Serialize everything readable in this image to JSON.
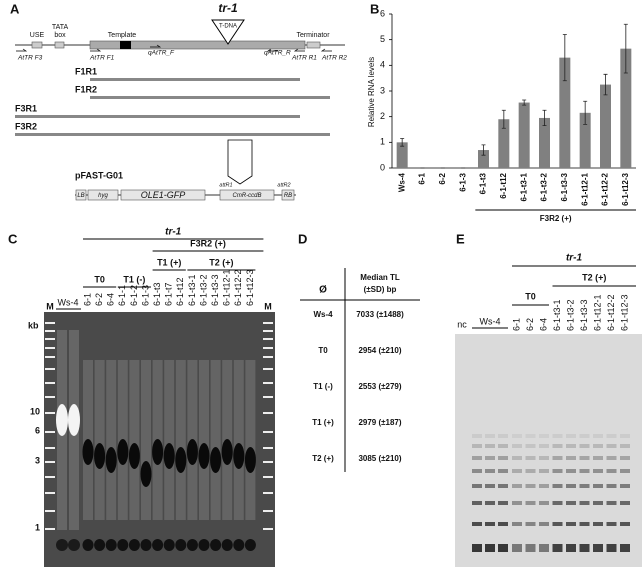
{
  "panel_a": {
    "letter": "A",
    "insertion": {
      "label": "tr-1",
      "sublabel": "T-DNA"
    },
    "use": "USE",
    "tata_box": [
      "TATA",
      "box"
    ],
    "template": "Template",
    "terminator": "Terminator",
    "primers": [
      "AtTR F3",
      "AtTR F1",
      "qAtTR_F",
      "qAtTR_R",
      "AtTR R1",
      "AtTR R2"
    ],
    "amplicons": [
      "F1R1",
      "F1R2",
      "F3R1",
      "F3R2"
    ],
    "construct": {
      "name": "pFAST-G01",
      "parts": [
        "LB",
        "hyg",
        "OLE1-GFP",
        "CmR-ccdB",
        "RB"
      ],
      "sites": [
        "attR1",
        "attR2"
      ],
      "insert": [
        "F1R1",
        "F1R2",
        "F3R1",
        "F3R2"
      ]
    }
  },
  "chart_data": {
    "type": "bar",
    "panel_letter": "B",
    "y_label": "Relative RNA levels",
    "categories": [
      "Ws-4",
      "6-1",
      "6-2",
      "6-1-3",
      "6-1-t3",
      "6-1-t12",
      "6-1-t3-1",
      "6-1-t3-2",
      "6-1-t3-3",
      "6-1-t12-1",
      "6-1-t12-2",
      "6-1-t12-3"
    ],
    "values": [
      1.0,
      0,
      0,
      0,
      0.7,
      1.9,
      2.55,
      1.95,
      4.3,
      2.15,
      3.25,
      4.65
    ],
    "errors": [
      0.15,
      0,
      0,
      0,
      0.2,
      0.35,
      0.1,
      0.3,
      0.9,
      0.45,
      0.4,
      0.95
    ],
    "color": "#808080",
    "ylim": [
      0,
      6
    ],
    "yticks": [
      0,
      1,
      2,
      3,
      4,
      5,
      6
    ],
    "grid": false,
    "group_label": "F3R2 (+)"
  },
  "panel_c": {
    "letter": "C",
    "groups": [
      "tr-1",
      "F3R2 (+)",
      "T0",
      "T1 (-)",
      "T1 (+)",
      "T2 (+)"
    ],
    "marker": "M",
    "control": "Ws-4",
    "lanes": [
      "6-1",
      "6-2",
      "6-4",
      "6-1-1",
      "6-1-2",
      "6-1-3",
      "6-1-t3",
      "6-1-t7",
      "6-1-t12",
      "6-1-t3-1",
      "6-1-t3-2",
      "6-1-t3-3",
      "6-1-t12-1",
      "6-1-t12-2",
      "6-1-t12-3"
    ],
    "size_unit": "kb",
    "sizes": [
      "10",
      "6",
      "3",
      "1"
    ]
  },
  "panel_d": {
    "letter": "D",
    "header": [
      "Ø",
      "Median TL",
      "(±SD) bp"
    ],
    "rows": [
      [
        "Ws-4",
        "7033 (±1488)"
      ],
      [
        "T0",
        "2954 (±210)"
      ],
      [
        "T1 (-)",
        "2553 (±279)"
      ],
      [
        "T1 (+)",
        "2979 (±187)"
      ],
      [
        "T2 (+)",
        "3085 (±210)"
      ]
    ]
  },
  "panel_e": {
    "letter": "E",
    "groups": [
      "tr-1",
      "T2 (+)",
      "T0"
    ],
    "negative": "nc",
    "control": "Ws-4",
    "lanes": [
      "6-1",
      "6-2",
      "6-4",
      "6-1-t3-1",
      "6-1-t3-2",
      "6-1-t3-3",
      "6-1-t12-1",
      "6-1-t12-2",
      "6-1-t12-3"
    ]
  }
}
